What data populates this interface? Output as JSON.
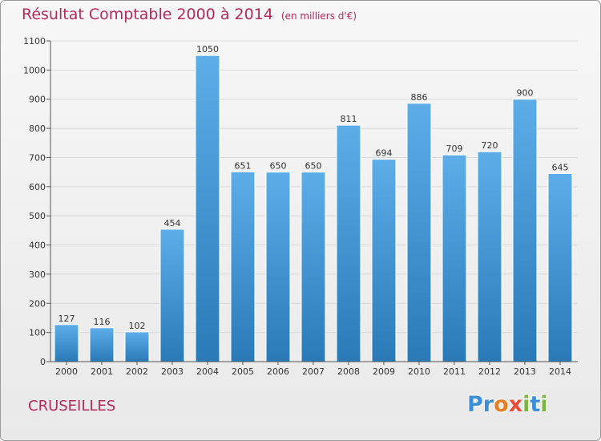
{
  "header": {
    "title": "Résultat Comptable 2000 à 2014",
    "unit": "(en milliers d'€)"
  },
  "footer": {
    "city": "CRUSEILLES",
    "logo_letters": [
      "P",
      "r",
      "o",
      "x",
      "i",
      "t",
      "i"
    ],
    "logo_colors": [
      "#3a8fd6",
      "#3a8fd6",
      "#e67e22",
      "#e74c3c",
      "#7cb342",
      "#3a8fd6",
      "#7cb342"
    ]
  },
  "colors": {
    "title": "#b22a5b",
    "bar_top": "#5dade9",
    "bar_bottom": "#2a7ab8",
    "grid": "#d8d8d8",
    "axis": "#555555",
    "label": "#333333"
  },
  "chart_data": {
    "type": "bar",
    "title": "Résultat Comptable 2000 à 2014",
    "xlabel": "",
    "ylabel": "",
    "categories": [
      "2000",
      "2001",
      "2002",
      "2003",
      "2004",
      "2005",
      "2006",
      "2007",
      "2008",
      "2009",
      "2010",
      "2011",
      "2012",
      "2013",
      "2014"
    ],
    "values": [
      127,
      116,
      102,
      454,
      1050,
      651,
      650,
      650,
      811,
      694,
      886,
      709,
      720,
      900,
      645
    ],
    "ylim": [
      0,
      1100
    ],
    "yticks": [
      0,
      100,
      200,
      300,
      400,
      500,
      600,
      700,
      800,
      900,
      1000,
      1100
    ],
    "grid": true,
    "data_labels": true
  }
}
